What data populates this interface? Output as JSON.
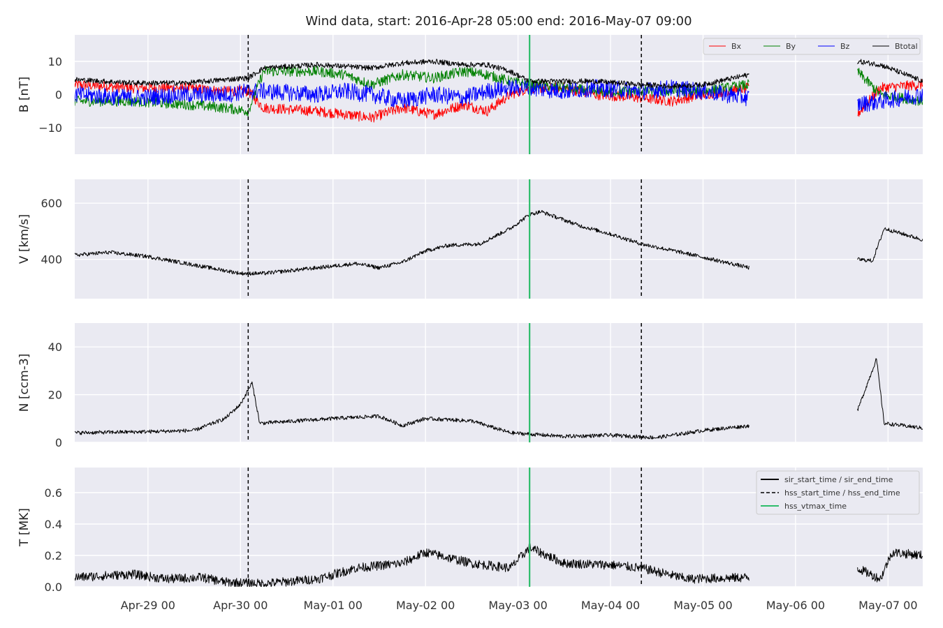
{
  "chart_data": {
    "type": "line",
    "title": "Wind data, start: 2016-Apr-28 05:00  end: 2016-May-07 09:00",
    "x_range": [
      "2016-04-28T05:00",
      "2016-05-07T09:00"
    ],
    "x_tick_labels": [
      "Apr-29 00",
      "Apr-30 00",
      "May-01 00",
      "May-02 00",
      "May-03 00",
      "May-04 00",
      "May-05 00",
      "May-06 00",
      "May-07 00"
    ],
    "x_ticks": [
      "2016-04-29T00:00",
      "2016-04-30T00:00",
      "2016-05-01T00:00",
      "2016-05-02T00:00",
      "2016-05-03T00:00",
      "2016-05-04T00:00",
      "2016-05-05T00:00",
      "2016-05-06T00:00",
      "2016-05-07T00:00"
    ],
    "data_gap": [
      "2016-05-05T12:00",
      "2016-05-06T16:00"
    ],
    "vertical_lines": [
      {
        "time": "2016-04-30T02:00",
        "style": "dashed",
        "color": "#000000",
        "legend": "hss_start_time / hss_end_time"
      },
      {
        "time": "2016-05-04T08:00",
        "style": "dashed",
        "color": "#000000",
        "legend": "hss_start_time / hss_end_time"
      },
      {
        "time": "2016-05-03T03:00",
        "style": "solid",
        "color": "#2ebd6b",
        "legend": "hss_vtmax_time"
      }
    ],
    "legend_vertical": {
      "placement": "top-right",
      "entries": [
        {
          "label": "sir_start_time / sir_end_time",
          "style": "solid",
          "color": "#000000"
        },
        {
          "label": "hss_start_time / hss_end_time",
          "style": "dashed",
          "color": "#000000"
        },
        {
          "label": "hss_vtmax_time",
          "style": "solid",
          "color": "#2ebd6b"
        }
      ]
    },
    "panels": [
      {
        "id": "B",
        "ylabel": "B [nT]",
        "ylim": [
          -18,
          18
        ],
        "y_ticks": [
          -10,
          0,
          10
        ],
        "y_tick_labels": [
          "−10",
          "0",
          "10"
        ],
        "legend": {
          "placement": "top-right",
          "entries": [
            "Bx",
            "By",
            "Bz",
            "Btotal"
          ]
        },
        "series": [
          {
            "name": "Bx",
            "color": "#ff0000",
            "noise": 1.6,
            "points": [
              [
                "2016-04-28T05:00",
                3
              ],
              [
                "2016-04-28T20:00",
                2
              ],
              [
                "2016-04-29T10:00",
                2
              ],
              [
                "2016-04-29T20:00",
                1
              ],
              [
                "2016-04-30T02:00",
                1
              ],
              [
                "2016-04-30T06:00",
                -4
              ],
              [
                "2016-04-30T20:00",
                -5
              ],
              [
                "2016-05-01T03:00",
                -6
              ],
              [
                "2016-05-01T10:00",
                -7
              ],
              [
                "2016-05-01T18:00",
                -4
              ],
              [
                "2016-05-02T02:00",
                -6
              ],
              [
                "2016-05-02T10:00",
                -3
              ],
              [
                "2016-05-02T16:00",
                -5
              ],
              [
                "2016-05-02T22:00",
                0
              ],
              [
                "2016-05-03T03:00",
                2
              ],
              [
                "2016-05-03T12:00",
                2
              ],
              [
                "2016-05-03T20:00",
                0
              ],
              [
                "2016-05-04T08:00",
                -1
              ],
              [
                "2016-05-04T16:00",
                -2
              ],
              [
                "2016-05-05T00:00",
                0
              ],
              [
                "2016-05-05T12:00",
                2
              ],
              [
                "2016-05-06T16:00",
                -6
              ],
              [
                "2016-05-06T22:00",
                2
              ],
              [
                "2016-05-07T09:00",
                3
              ]
            ]
          },
          {
            "name": "By",
            "color": "#008000",
            "noise": 1.6,
            "points": [
              [
                "2016-04-28T05:00",
                -2
              ],
              [
                "2016-04-28T20:00",
                -2
              ],
              [
                "2016-04-29T10:00",
                -3
              ],
              [
                "2016-04-29T20:00",
                -4
              ],
              [
                "2016-04-30T02:00",
                -5
              ],
              [
                "2016-04-30T06:00",
                7
              ],
              [
                "2016-04-30T20:00",
                7
              ],
              [
                "2016-05-01T03:00",
                6
              ],
              [
                "2016-05-01T10:00",
                3
              ],
              [
                "2016-05-01T18:00",
                6
              ],
              [
                "2016-05-02T02:00",
                5
              ],
              [
                "2016-05-02T10:00",
                7
              ],
              [
                "2016-05-02T16:00",
                6
              ],
              [
                "2016-05-02T22:00",
                4
              ],
              [
                "2016-05-03T03:00",
                3
              ],
              [
                "2016-05-03T12:00",
                2
              ],
              [
                "2016-05-03T20:00",
                1
              ],
              [
                "2016-05-04T08:00",
                1
              ],
              [
                "2016-05-04T16:00",
                1
              ],
              [
                "2016-05-05T00:00",
                1
              ],
              [
                "2016-05-05T12:00",
                3
              ],
              [
                "2016-05-06T16:00",
                7
              ],
              [
                "2016-05-06T22:00",
                0
              ],
              [
                "2016-05-07T09:00",
                -2
              ]
            ]
          },
          {
            "name": "Bz",
            "color": "#0000ff",
            "noise": 2.6,
            "points": [
              [
                "2016-04-28T05:00",
                0
              ],
              [
                "2016-04-28T20:00",
                -1
              ],
              [
                "2016-04-29T10:00",
                0
              ],
              [
                "2016-04-29T20:00",
                0
              ],
              [
                "2016-04-30T02:00",
                1
              ],
              [
                "2016-04-30T06:00",
                1
              ],
              [
                "2016-04-30T20:00",
                0
              ],
              [
                "2016-05-01T03:00",
                1
              ],
              [
                "2016-05-01T10:00",
                0
              ],
              [
                "2016-05-01T18:00",
                -2
              ],
              [
                "2016-05-02T02:00",
                0
              ],
              [
                "2016-05-02T10:00",
                -1
              ],
              [
                "2016-05-02T16:00",
                1
              ],
              [
                "2016-05-02T22:00",
                2
              ],
              [
                "2016-05-03T03:00",
                2
              ],
              [
                "2016-05-03T12:00",
                1
              ],
              [
                "2016-05-03T20:00",
                2
              ],
              [
                "2016-05-04T08:00",
                1
              ],
              [
                "2016-05-04T16:00",
                2
              ],
              [
                "2016-05-05T00:00",
                1
              ],
              [
                "2016-05-05T12:00",
                -1
              ],
              [
                "2016-05-06T16:00",
                -3
              ],
              [
                "2016-05-06T22:00",
                -2
              ],
              [
                "2016-05-07T09:00",
                0
              ]
            ]
          },
          {
            "name": "Btotal",
            "color": "#000000",
            "noise": 0.8,
            "points": [
              [
                "2016-04-28T05:00",
                4.5
              ],
              [
                "2016-04-28T20:00",
                3.5
              ],
              [
                "2016-04-29T10:00",
                3.5
              ],
              [
                "2016-04-29T20:00",
                4.5
              ],
              [
                "2016-04-30T02:00",
                5
              ],
              [
                "2016-04-30T06:00",
                8
              ],
              [
                "2016-04-30T20:00",
                9
              ],
              [
                "2016-05-01T03:00",
                8.5
              ],
              [
                "2016-05-01T10:00",
                8
              ],
              [
                "2016-05-01T18:00",
                9.5
              ],
              [
                "2016-05-02T02:00",
                10
              ],
              [
                "2016-05-02T10:00",
                9
              ],
              [
                "2016-05-02T16:00",
                9
              ],
              [
                "2016-05-02T22:00",
                7
              ],
              [
                "2016-05-03T03:00",
                4
              ],
              [
                "2016-05-03T12:00",
                4
              ],
              [
                "2016-05-03T20:00",
                4
              ],
              [
                "2016-05-04T08:00",
                3
              ],
              [
                "2016-05-04T16:00",
                2.5
              ],
              [
                "2016-05-05T00:00",
                3
              ],
              [
                "2016-05-05T12:00",
                6
              ],
              [
                "2016-05-06T16:00",
                10
              ],
              [
                "2016-05-06T22:00",
                9
              ],
              [
                "2016-05-07T09:00",
                4
              ]
            ]
          }
        ]
      },
      {
        "id": "V",
        "ylabel": "V [km/s]",
        "ylim": [
          260,
          685
        ],
        "y_ticks": [
          400,
          600
        ],
        "y_tick_labels": [
          "400",
          "600"
        ],
        "series": [
          {
            "name": "V",
            "color": "#000000",
            "noise": 7,
            "points": [
              [
                "2016-04-28T05:00",
                415
              ],
              [
                "2016-04-28T14:00",
                425
              ],
              [
                "2016-04-29T00:00",
                410
              ],
              [
                "2016-04-29T12:00",
                380
              ],
              [
                "2016-04-30T00:00",
                350
              ],
              [
                "2016-04-30T06:00",
                350
              ],
              [
                "2016-04-30T20:00",
                370
              ],
              [
                "2016-05-01T06:00",
                385
              ],
              [
                "2016-05-01T12:00",
                370
              ],
              [
                "2016-05-01T18:00",
                390
              ],
              [
                "2016-05-02T00:00",
                430
              ],
              [
                "2016-05-02T06:00",
                450
              ],
              [
                "2016-05-02T14:00",
                455
              ],
              [
                "2016-05-02T22:00",
                510
              ],
              [
                "2016-05-03T03:00",
                560
              ],
              [
                "2016-05-03T06:00",
                570
              ],
              [
                "2016-05-03T16:00",
                520
              ],
              [
                "2016-05-04T00:00",
                490
              ],
              [
                "2016-05-04T08:00",
                455
              ],
              [
                "2016-05-04T20:00",
                420
              ],
              [
                "2016-05-05T12:00",
                370
              ],
              [
                "2016-05-06T16:00",
                400
              ],
              [
                "2016-05-06T20:00",
                395
              ],
              [
                "2016-05-06T23:00",
                510
              ],
              [
                "2016-05-07T09:00",
                470
              ]
            ]
          }
        ]
      },
      {
        "id": "N",
        "ylabel": "N [ccm-3]",
        "ylim": [
          0,
          50
        ],
        "y_ticks": [
          0,
          20,
          40
        ],
        "y_tick_labels": [
          "0",
          "20",
          "40"
        ],
        "series": [
          {
            "name": "N",
            "color": "#000000",
            "noise": 0.8,
            "points": [
              [
                "2016-04-28T05:00",
                4
              ],
              [
                "2016-04-29T00:00",
                4.5
              ],
              [
                "2016-04-29T12:00",
                5
              ],
              [
                "2016-04-29T20:00",
                10
              ],
              [
                "2016-04-30T00:00",
                16
              ],
              [
                "2016-04-30T03:00",
                25
              ],
              [
                "2016-04-30T05:00",
                8
              ],
              [
                "2016-05-01T00:00",
                10
              ],
              [
                "2016-05-01T12:00",
                11
              ],
              [
                "2016-05-01T18:00",
                7
              ],
              [
                "2016-05-02T00:00",
                10
              ],
              [
                "2016-05-02T12:00",
                9
              ],
              [
                "2016-05-02T22:00",
                4
              ],
              [
                "2016-05-03T12:00",
                2.5
              ],
              [
                "2016-05-04T00:00",
                3
              ],
              [
                "2016-05-04T12:00",
                2
              ],
              [
                "2016-05-05T00:00",
                5
              ],
              [
                "2016-05-05T12:00",
                7
              ],
              [
                "2016-05-06T16:00",
                13
              ],
              [
                "2016-05-06T21:00",
                35
              ],
              [
                "2016-05-06T23:00",
                8
              ],
              [
                "2016-05-07T09:00",
                6
              ]
            ]
          }
        ]
      },
      {
        "id": "T",
        "ylabel": "T [MK]",
        "ylim": [
          0,
          0.76
        ],
        "y_ticks": [
          0.0,
          0.2,
          0.4,
          0.6
        ],
        "y_tick_labels": [
          "0.0",
          "0.2",
          "0.4",
          "0.6"
        ],
        "series": [
          {
            "name": "T",
            "color": "#000000",
            "noise": 0.03,
            "points": [
              [
                "2016-04-28T05:00",
                0.06
              ],
              [
                "2016-04-28T20:00",
                0.08
              ],
              [
                "2016-04-29T05:00",
                0.05
              ],
              [
                "2016-04-29T14:00",
                0.06
              ],
              [
                "2016-04-29T20:00",
                0.03
              ],
              [
                "2016-04-30T06:00",
                0.02
              ],
              [
                "2016-04-30T20:00",
                0.05
              ],
              [
                "2016-05-01T06:00",
                0.12
              ],
              [
                "2016-05-01T18:00",
                0.15
              ],
              [
                "2016-05-02T00:00",
                0.22
              ],
              [
                "2016-05-02T12:00",
                0.15
              ],
              [
                "2016-05-02T22:00",
                0.12
              ],
              [
                "2016-05-03T03:00",
                0.25
              ],
              [
                "2016-05-03T12:00",
                0.15
              ],
              [
                "2016-05-04T00:00",
                0.14
              ],
              [
                "2016-05-04T08:00",
                0.12
              ],
              [
                "2016-05-04T20:00",
                0.05
              ],
              [
                "2016-05-05T12:00",
                0.06
              ],
              [
                "2016-05-06T16:00",
                0.12
              ],
              [
                "2016-05-06T22:00",
                0.05
              ],
              [
                "2016-05-07T01:00",
                0.22
              ],
              [
                "2016-05-07T09:00",
                0.2
              ]
            ]
          }
        ]
      }
    ]
  }
}
